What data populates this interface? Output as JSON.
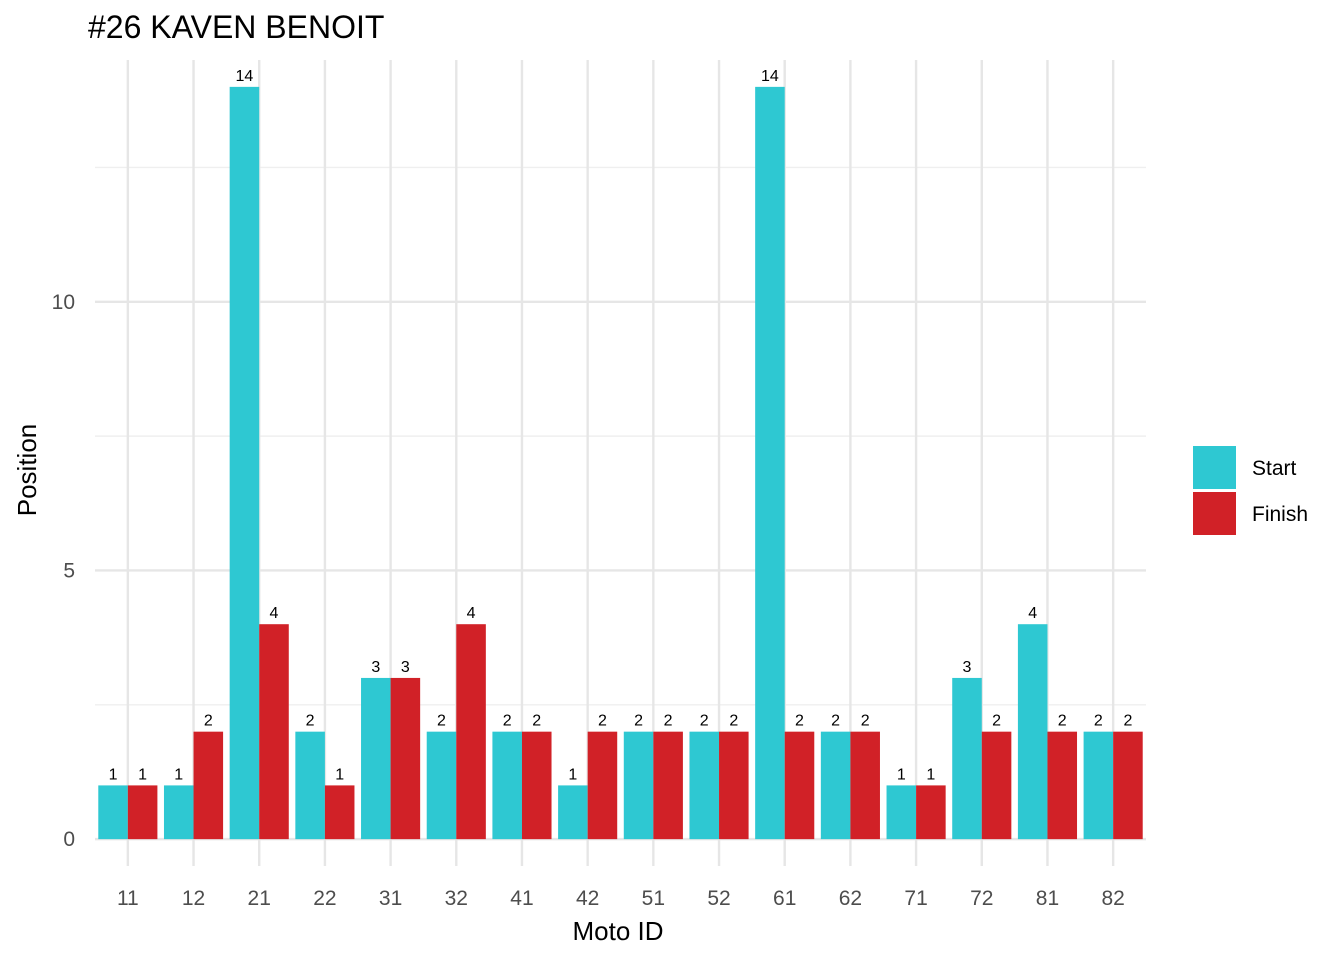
{
  "chart_data": {
    "type": "bar",
    "title": "#26 KAVEN BENOIT",
    "xlabel": "Moto ID",
    "ylabel": "Position",
    "categories": [
      "11",
      "12",
      "21",
      "22",
      "31",
      "32",
      "41",
      "42",
      "51",
      "52",
      "61",
      "62",
      "71",
      "72",
      "81",
      "82"
    ],
    "series": [
      {
        "name": "Start",
        "color": "#2ec8d2",
        "values": [
          1,
          1,
          14,
          2,
          3,
          2,
          2,
          1,
          2,
          2,
          14,
          2,
          1,
          3,
          4,
          2
        ]
      },
      {
        "name": "Finish",
        "color": "#d12127",
        "values": [
          1,
          2,
          4,
          1,
          3,
          4,
          2,
          2,
          2,
          2,
          2,
          2,
          1,
          2,
          2,
          2
        ]
      }
    ],
    "ylim": [
      -0.5,
      14.5
    ],
    "yticks": [
      "0",
      "5",
      "10"
    ],
    "grid": true,
    "legend": "right",
    "data_labels": true
  }
}
